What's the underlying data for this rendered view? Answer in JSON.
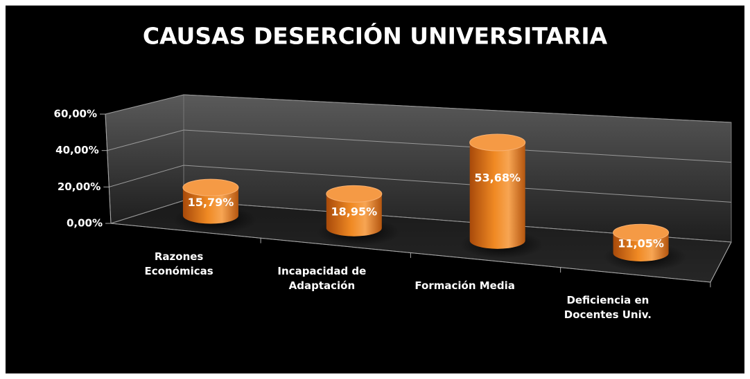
{
  "chart_data": {
    "type": "bar3d",
    "title": "CAUSAS DESERCIÓN UNIVERSITARIA",
    "categories": [
      "Razones Económicas",
      "Incapacidad de Adaptación",
      "Formación Media",
      "Deficiencia en Docentes Univ."
    ],
    "values": [
      15.79,
      18.95,
      53.68,
      11.05
    ],
    "value_labels": [
      "15,79%",
      "18,95%",
      "53,68%",
      "11,05%"
    ],
    "color": "#f08a24",
    "ylim": [
      0,
      60
    ],
    "yticks": [
      {
        "value": 0,
        "label": "0,00%"
      },
      {
        "value": 20,
        "label": "20,00%"
      },
      {
        "value": 40,
        "label": "40,00%"
      },
      {
        "value": 60,
        "label": "60,00%"
      }
    ],
    "grid": true
  }
}
